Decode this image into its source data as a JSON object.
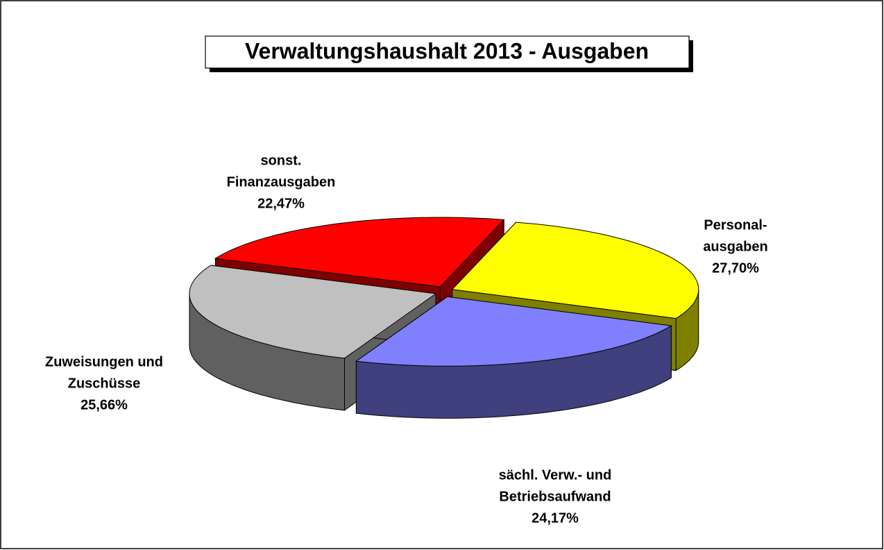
{
  "chart_data": {
    "type": "pie3d",
    "title": "Verwaltungshaushalt 2013 - Ausgaben",
    "categories": [
      [
        "Personal-",
        "ausgaben"
      ],
      [
        "sächl. Verw.- und",
        "Betriebsaufwand"
      ],
      [
        "Zuweisungen und",
        "Zuschüsse"
      ],
      [
        "sonst.",
        "Finanzausgaben"
      ]
    ],
    "values": [
      27.7,
      24.17,
      25.66,
      22.47
    ],
    "value_labels": [
      "27,70%",
      "24,17%",
      "25,66%",
      "22,47%"
    ],
    "colors": [
      "#ffff00",
      "#8080ff",
      "#c0c0c0",
      "#ff0000"
    ]
  }
}
